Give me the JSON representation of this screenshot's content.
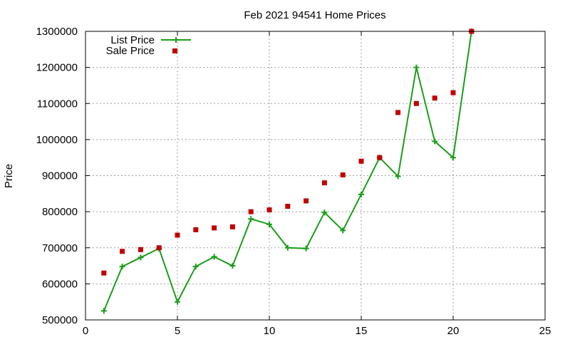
{
  "chart_data": {
    "type": "line",
    "title": "Feb 2021 94541 Home Prices",
    "xlabel": "",
    "ylabel": "Price",
    "xlim": [
      0,
      25
    ],
    "ylim": [
      500000,
      1300000
    ],
    "xticks": [
      0,
      5,
      10,
      15,
      20,
      25
    ],
    "yticks": [
      500000,
      600000,
      700000,
      800000,
      900000,
      1000000,
      1100000,
      1200000,
      1300000
    ],
    "xtick_labels": [
      "0",
      "5",
      "10",
      "15",
      "20",
      "25"
    ],
    "ytick_labels": [
      "500000",
      "600000",
      "700000",
      "800000",
      "900000",
      "1000000",
      "1100000",
      "1200000",
      "1300000"
    ],
    "grid": true,
    "legend_position": "top-left",
    "series": [
      {
        "name": "List Price",
        "style": "linespoints",
        "marker": "plus",
        "color": "#1a9e1a",
        "x": [
          1,
          2,
          3,
          4,
          5,
          6,
          7,
          8,
          9,
          10,
          11,
          12,
          13,
          14,
          15,
          16,
          17,
          18,
          19,
          20,
          21
        ],
        "values": [
          525000,
          648000,
          673000,
          698000,
          550000,
          648000,
          675000,
          650000,
          780000,
          765000,
          700000,
          698000,
          798000,
          748000,
          848000,
          950000,
          898000,
          1200000,
          995000,
          950000,
          1300000
        ]
      },
      {
        "name": "Sale Price",
        "style": "points",
        "marker": "square",
        "color": "#c00000",
        "x": [
          1,
          2,
          3,
          4,
          5,
          6,
          7,
          8,
          9,
          10,
          11,
          12,
          13,
          14,
          15,
          16,
          17,
          18,
          19,
          20,
          21
        ],
        "values": [
          630000,
          690000,
          695000,
          700000,
          735000,
          750000,
          755000,
          758000,
          800000,
          805000,
          815000,
          830000,
          880000,
          902000,
          940000,
          950000,
          1075000,
          1100000,
          1115000,
          1130000,
          1300000
        ]
      }
    ]
  }
}
